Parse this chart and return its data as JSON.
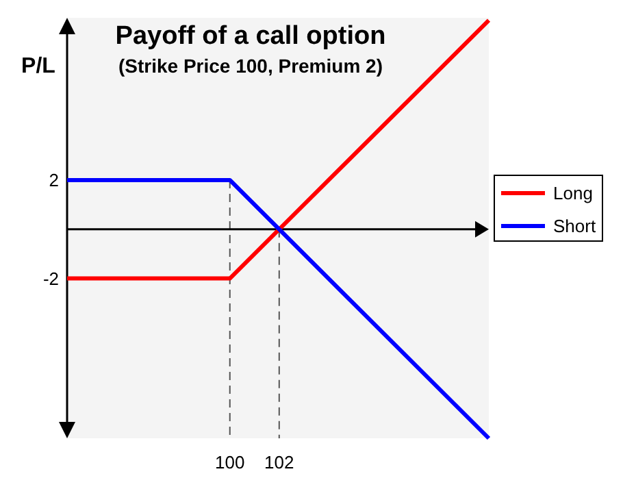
{
  "chart_data": {
    "type": "line",
    "title": "Payoff of a call option",
    "subtitle": "(Strike Price 100, Premium 2)",
    "ylabel": "P/L",
    "xlim": [
      93.4,
      110.5
    ],
    "ylim": [
      -8.5,
      8.6
    ],
    "xticks": [
      100,
      102
    ],
    "yticks": [
      2,
      -2
    ],
    "series": [
      {
        "name": "Long",
        "color": "#ff0000",
        "x": [
          93.4,
          100,
          110.5
        ],
        "values": [
          -2,
          -2,
          8.5
        ]
      },
      {
        "name": "Short",
        "color": "#0000ff",
        "x": [
          93.4,
          100,
          110.5
        ],
        "values": [
          2,
          2,
          -8.5
        ]
      }
    ],
    "ref_lines": [
      {
        "axis": "x",
        "value": 100,
        "line_style": "dashed",
        "color": "#555555"
      },
      {
        "axis": "x",
        "value": 102,
        "line_style": "dashed",
        "color": "#555555"
      }
    ],
    "legend": "right",
    "marker": "none",
    "line_style": "solid",
    "grid": false
  }
}
